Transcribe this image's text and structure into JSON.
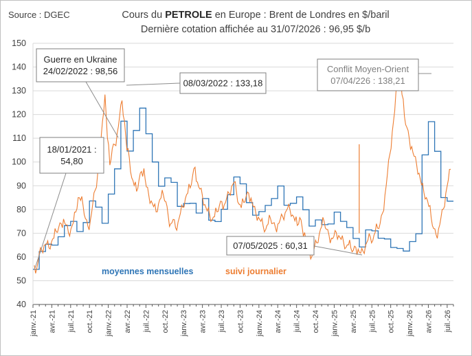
{
  "source": "Source : DGEC",
  "title": {
    "prefix": "Cours du ",
    "bold": "PETROLE",
    "suffix": " en Europe : Brent de Londres en $/baril",
    "line2": "Dernière cotation affichée au 31/07/2026 : 96,95 $/b"
  },
  "legend": {
    "monthly": "moyennes mensuelles",
    "daily": "suivi journalier"
  },
  "colors": {
    "monthly": "#2e75b6",
    "daily": "#ed7d31",
    "grid": "#d9d9d9",
    "axis": "#595959",
    "text": "#404040",
    "annotation_border": "#7f7f7f",
    "leader": "#8c8c8c"
  },
  "chart_data": {
    "type": "line",
    "ylim": [
      40,
      150
    ],
    "yticks": [
      40,
      50,
      60,
      70,
      80,
      90,
      100,
      110,
      120,
      130,
      140,
      150
    ],
    "x_start": "2021-01",
    "x_end": "2026-07",
    "tick_labels": [
      "janv.-21",
      "avr.-21",
      "juil.-21",
      "oct.-21",
      "janv.-22",
      "avr.-22",
      "juil.-22",
      "oct.-22",
      "janv.-23",
      "avr.-23",
      "juil.-23",
      "oct.-23",
      "janv.-24",
      "avr.-24",
      "juil.-24",
      "oct.-24",
      "janv.-25",
      "avr.-25",
      "juil.-25",
      "oct.-25",
      "janv.-26",
      "avr.-26",
      "juil.-26"
    ],
    "series": [
      {
        "name": "moyennes mensuelles",
        "months": [
          "2021-01",
          "2021-02",
          "2021-03",
          "2021-04",
          "2021-05",
          "2021-06",
          "2021-07",
          "2021-08",
          "2021-09",
          "2021-10",
          "2021-11",
          "2021-12",
          "2022-01",
          "2022-02",
          "2022-03",
          "2022-04",
          "2022-05",
          "2022-06",
          "2022-07",
          "2022-08",
          "2022-09",
          "2022-10",
          "2022-11",
          "2022-12",
          "2023-01",
          "2023-02",
          "2023-03",
          "2023-04",
          "2023-05",
          "2023-06",
          "2023-07",
          "2023-08",
          "2023-09",
          "2023-10",
          "2023-11",
          "2023-12",
          "2024-01",
          "2024-02",
          "2024-03",
          "2024-04",
          "2024-05",
          "2024-06",
          "2024-07",
          "2024-08",
          "2024-09",
          "2024-10",
          "2024-11",
          "2024-12",
          "2025-01",
          "2025-02",
          "2025-03",
          "2025-04",
          "2025-05",
          "2025-06",
          "2025-07",
          "2025-08",
          "2025-09",
          "2025-10",
          "2025-11",
          "2025-12",
          "2026-01",
          "2026-02",
          "2026-03",
          "2026-04",
          "2026-05",
          "2026-06",
          "2026-07"
        ],
        "values": [
          54.8,
          62.3,
          65.4,
          65.0,
          68.5,
          73.2,
          75.0,
          70.7,
          74.5,
          83.6,
          81.0,
          74.2,
          86.5,
          97.1,
          117.2,
          104.6,
          113.3,
          122.7,
          111.9,
          100.0,
          89.8,
          93.3,
          91.4,
          81.3,
          82.5,
          82.6,
          78.5,
          84.6,
          75.5,
          74.9,
          80.1,
          86.2,
          93.7,
          90.8,
          82.9,
          77.6,
          79.1,
          81.7,
          84.6,
          89.9,
          81.8,
          82.6,
          85.3,
          79.9,
          73.0,
          75.6,
          73.6,
          73.9,
          78.9,
          75.0,
          72.4,
          67.8,
          64.2,
          71.4,
          71.0,
          67.9,
          67.6,
          64.0,
          63.6,
          62.5,
          66.5,
          69.8,
          103.0,
          117.0,
          104.5,
          85.0,
          83.5
        ]
      },
      {
        "name": "suivi journalier",
        "values": [
          56.5,
          55.2,
          61.4,
          63.1,
          64.9,
          65.4,
          63.8,
          66.2,
          67.9,
          70.6,
          72.4,
          74.1,
          76.0,
          73.5,
          70.2,
          71.8,
          74.4,
          78.9,
          85.0,
          83.8,
          81.7,
          76.1,
          72.9,
          75.4,
          82.6,
          88.2,
          94.9,
          101.4,
          117.2,
          128.4,
          110.1,
          98.7,
          105.6,
          107.3,
          112.0,
          119.0,
          125.9,
          117.5,
          105.1,
          101.8,
          93.3,
          90.1,
          87.6,
          92.5,
          96.0,
          97.3,
          89.5,
          85.9,
          83.6,
          81.2,
          79.0,
          82.4,
          84.8,
          86.1,
          83.3,
          77.2,
          74.0,
          75.8,
          72.3,
          74.6,
          78.4,
          80.9,
          84.5,
          86.9,
          89.1,
          94.3,
          97.8,
          91.5,
          88.6,
          86.0,
          82.1,
          79.4,
          77.7,
          75.6,
          76.9,
          79.0,
          81.6,
          83.3,
          82.0,
          84.9,
          86.8,
          89.7,
          91.4,
          87.6,
          82.3,
          80.7,
          83.0,
          85.6,
          86.9,
          84.8,
          81.1,
          78.3,
          76.8,
          75.0,
          72.9,
          71.5,
          73.8,
          76.1,
          74.2,
          72.5,
          73.9,
          75.8,
          77.0,
          78.6,
          80.5,
          79.8,
          77.7,
          75.2,
          73.3,
          76.6,
          72.5,
          70.3,
          66.1,
          62.4,
          60.31,
          63.8,
          65.9,
          69.4,
          72.8,
          75.1,
          71.6,
          69.3,
          67.9,
          68.6,
          70.4,
          69.0,
          67.4,
          66.2,
          64.0,
          65.1,
          63.7,
          62.8,
          64.1,
          63.3,
          61.6,
          62.4,
          64.9,
          67.1,
          68.3,
          66.9,
          70.4,
          72.1,
          74.0,
          78.5,
          86.1,
          95.0,
          103.2,
          112.6,
          121.5,
          133.0,
          138.21,
          128.4,
          119.1,
          114.6,
          109.7,
          106.5,
          102.4,
          98.9,
          95.3,
          90.4,
          87.1,
          85.0,
          81.3,
          76.5,
          72.0,
          69.4,
          71.8,
          76.5,
          80.2,
          86.9,
          92.4,
          96.95
        ]
      }
    ],
    "annotations": [
      {
        "text": "18/01/2021 :\n54,80",
        "month": "2021-01",
        "value": 54.8
      },
      {
        "text": "Guerre en Ukraine\n24/02/2022 : 98,56",
        "month": "2022-02",
        "value": 98.56
      },
      {
        "text": "08/03/2022 : 133,18",
        "month": "2022-03",
        "value": 133.18
      },
      {
        "text": "07/05/2025 : 60,31",
        "month": "2025-05",
        "value": 60.31
      },
      {
        "text": "Conflit Moyen-Orient\n07/04/226 : 138,21",
        "month": "2026-04",
        "value": 138.21
      }
    ]
  }
}
